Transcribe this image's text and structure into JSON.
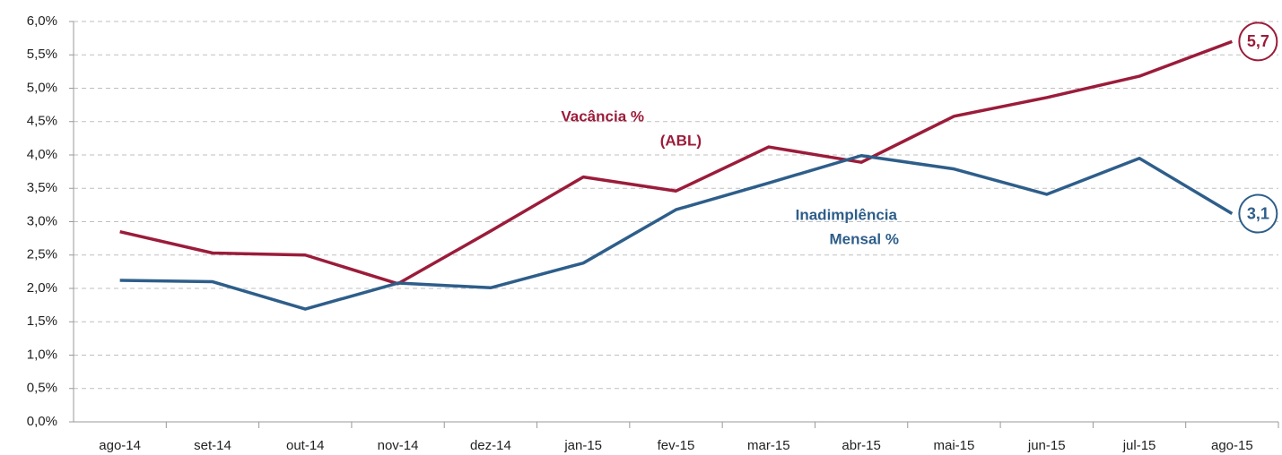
{
  "chart_data": {
    "type": "line",
    "categories": [
      "ago-14",
      "set-14",
      "out-14",
      "nov-14",
      "dez-14",
      "jan-15",
      "fev-15",
      "mar-15",
      "abr-15",
      "mai-15",
      "jun-15",
      "jul-15",
      "ago-15"
    ],
    "series": [
      {
        "color": "#9b1c3a",
        "values": [
          2.85,
          2.53,
          2.5,
          2.07,
          2.86,
          3.67,
          3.46,
          4.12,
          3.89,
          4.58,
          4.86,
          5.18,
          5.7
        ],
        "value_labels": [
          null,
          null,
          null,
          null,
          null,
          null,
          null,
          null,
          null,
          null,
          null,
          null,
          "5,7"
        ]
      },
      {
        "color": "#2e5e8a",
        "values": [
          2.12,
          2.1,
          1.69,
          2.08,
          2.01,
          2.38,
          3.18,
          3.58,
          3.99,
          3.79,
          3.41,
          3.95,
          3.12
        ],
        "value_labels": [
          null,
          null,
          null,
          null,
          null,
          null,
          null,
          null,
          null,
          null,
          null,
          null,
          "3,1"
        ]
      }
    ],
    "annotations": [
      {
        "lines": [
          "Vacância %",
          "(ABL)"
        ],
        "color": "#9b1c3a"
      },
      {
        "lines": [
          "Inadimplência",
          "Mensal %"
        ],
        "color": "#2e5e8a"
      }
    ],
    "ylim": [
      0,
      6
    ],
    "yticks": [
      {
        "value": 0,
        "label": "0,0%"
      },
      {
        "value": 0.5,
        "label": "0,5%"
      },
      {
        "value": 1,
        "label": "1,0%"
      },
      {
        "value": 1.5,
        "label": "1,5%"
      },
      {
        "value": 2,
        "label": "2,0%"
      },
      {
        "value": 2.5,
        "label": "2,5%"
      },
      {
        "value": 3,
        "label": "3,0%"
      },
      {
        "value": 3.5,
        "label": "3,5%"
      },
      {
        "value": 4,
        "label": "4,0%"
      },
      {
        "value": 4.5,
        "label": "4,5%"
      },
      {
        "value": 5,
        "label": "5,0%"
      },
      {
        "value": 5.5,
        "label": "5,5%"
      },
      {
        "value": 6,
        "label": "6,0%"
      }
    ],
    "grid": true
  }
}
